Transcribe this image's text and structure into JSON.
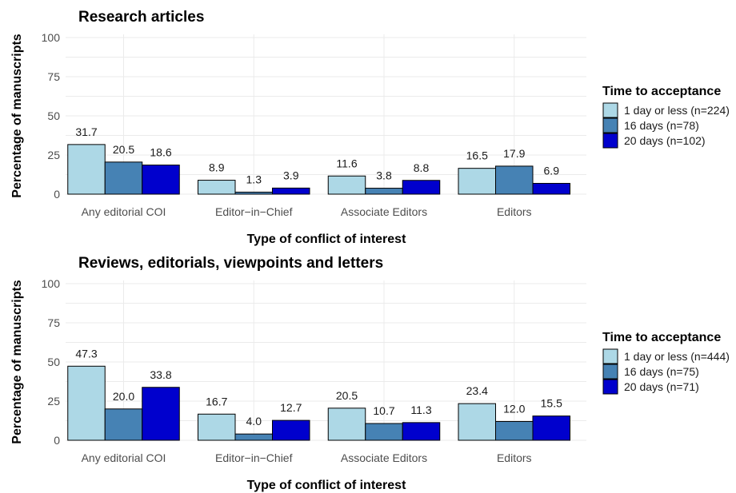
{
  "chart_data": [
    {
      "type": "bar",
      "title": "Research articles",
      "xlabel": "Type of conflict of interest",
      "ylabel": "Percentage of manuscripts",
      "ylim": [
        0,
        100
      ],
      "yticks": [
        0,
        25,
        50,
        75,
        100
      ],
      "categories": [
        "Any editorial COI",
        "Editor−in−Chief",
        "Associate Editors",
        "Editors"
      ],
      "legend_title": "Time to acceptance",
      "legend_position": "right",
      "grid": true,
      "series": [
        {
          "name": "1 day or less (n=224)",
          "color": "#add8e6",
          "values": [
            31.7,
            8.9,
            11.6,
            16.5
          ],
          "labels": [
            "31.7",
            "8.9",
            "11.6",
            "16.5"
          ]
        },
        {
          "name": "16 days (n=78)",
          "color": "#4682b4",
          "values": [
            20.5,
            1.3,
            3.8,
            17.9
          ],
          "labels": [
            "20.5",
            "1.3",
            "3.8",
            "17.9"
          ]
        },
        {
          "name": "20 days (n=102)",
          "color": "#0000cd",
          "values": [
            18.6,
            3.9,
            8.8,
            6.9
          ],
          "labels": [
            "18.6",
            "3.9",
            "8.8",
            "6.9"
          ]
        }
      ]
    },
    {
      "type": "bar",
      "title": "Reviews, editorials, viewpoints and letters",
      "xlabel": "Type of conflict of interest",
      "ylabel": "Percentage of manuscripts",
      "ylim": [
        0,
        100
      ],
      "yticks": [
        0,
        25,
        50,
        75,
        100
      ],
      "categories": [
        "Any editorial COI",
        "Editor−in−Chief",
        "Associate Editors",
        "Editors"
      ],
      "legend_title": "Time to acceptance",
      "legend_position": "right",
      "grid": true,
      "series": [
        {
          "name": "1 day or less (n=444)",
          "color": "#add8e6",
          "values": [
            47.3,
            16.7,
            20.5,
            23.4
          ],
          "labels": [
            "47.3",
            "16.7",
            "20.5",
            "23.4"
          ]
        },
        {
          "name": "16 days (n=75)",
          "color": "#4682b4",
          "values": [
            20.0,
            4.0,
            10.7,
            12.0
          ],
          "labels": [
            "20.0",
            "4.0",
            "10.7",
            "12.0"
          ]
        },
        {
          "name": "20 days (n=71)",
          "color": "#0000cd",
          "values": [
            33.8,
            12.7,
            11.3,
            15.5
          ],
          "labels": [
            "33.8",
            "12.7",
            "11.3",
            "15.5"
          ]
        }
      ]
    }
  ]
}
